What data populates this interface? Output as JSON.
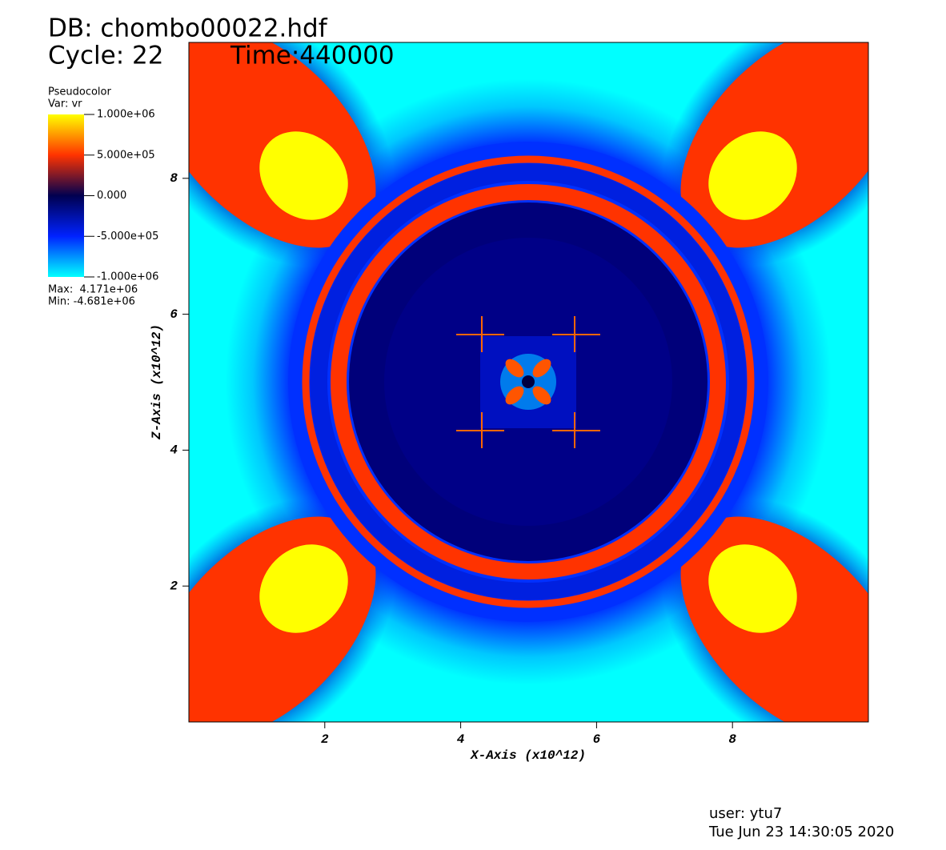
{
  "chart_data": {
    "type": "pseudocolor",
    "database": "DB: chombo00022.hdf",
    "cycle": "Cycle: 22",
    "time": "Time:440000",
    "legend": {
      "title": "Pseudocolor",
      "variable": "Var: vr",
      "colors": [
        "#ffff00",
        "#ff3300",
        "#000050",
        "#0022ff",
        "#00ffff"
      ],
      "ticks": [
        {
          "value": 1000000,
          "label": "1.000e+06"
        },
        {
          "value": 500000,
          "label": "5.000e+05"
        },
        {
          "value": 0,
          "label": "0.000"
        },
        {
          "value": -500000,
          "label": "-5.000e+05"
        },
        {
          "value": -1000000,
          "label": "-1.000e+06"
        }
      ],
      "range": [
        -1000000,
        1000000
      ],
      "max": "Max:  4.171e+06",
      "min": "Min: -4.681e+06"
    },
    "xlabel": "X-Axis (x10^12)",
    "ylabel": "Z-Axis (x10^12)",
    "xlim": [
      0,
      10
    ],
    "ylim": [
      0,
      10
    ],
    "xticks": [
      2,
      4,
      6,
      8
    ],
    "yticks": [
      2,
      4,
      6,
      8
    ],
    "user": "user: ytu7",
    "timestamp": "Tue Jun 23 14:30:05 2020"
  }
}
